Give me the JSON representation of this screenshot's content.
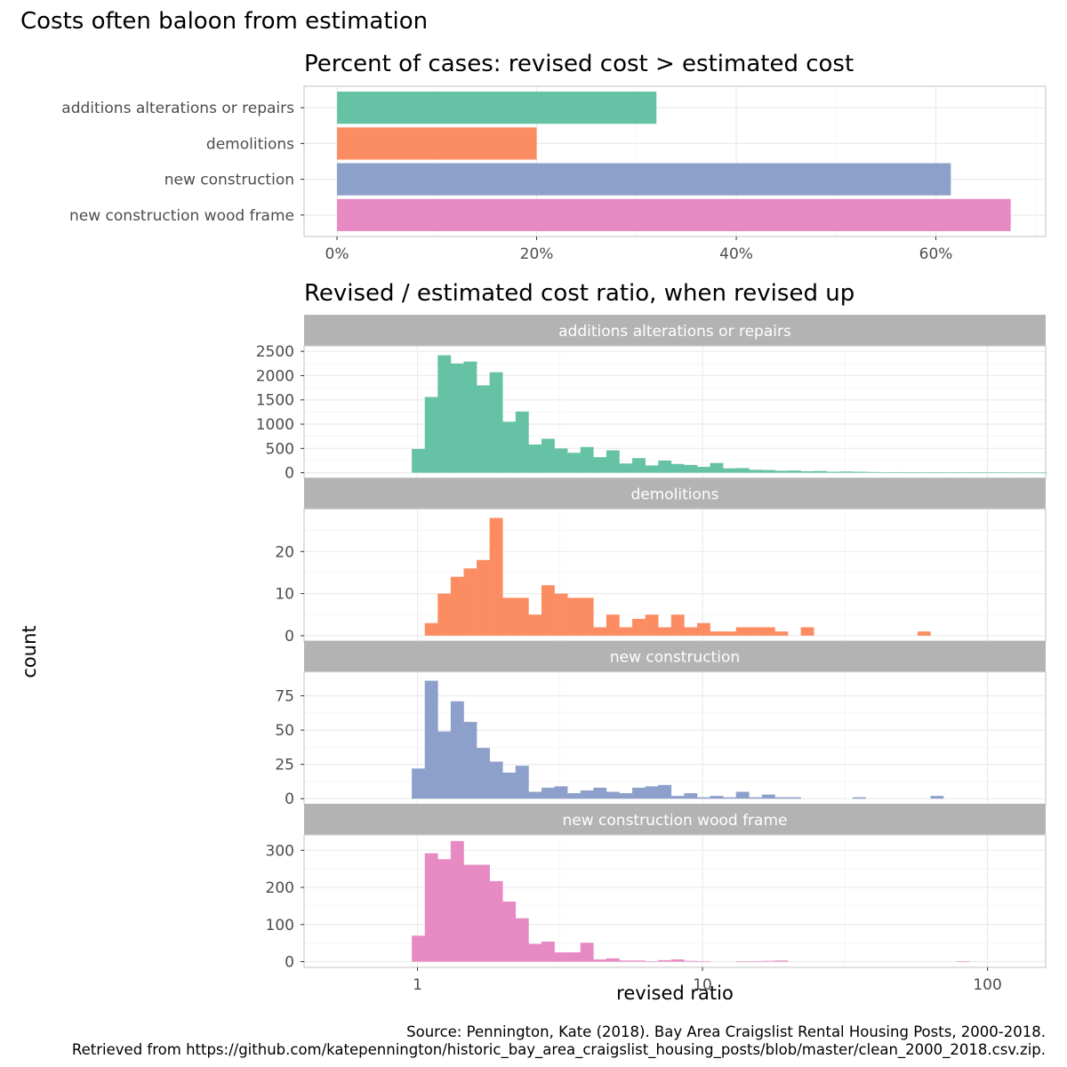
{
  "title": "Costs often baloon from estimation",
  "caption": {
    "line1": "Source: Pennington, Kate (2018). Bay Area Craigslist Rental Housing Posts, 2000-2018.",
    "line2": "Retrieved from https://github.com/katepennington/historic_bay_area_craigslist_housing_posts/blob/master/clean_2000_2018.csv.zip."
  },
  "colors": {
    "additions alterations or repairs": "#66c2a5",
    "demolitions": "#fc8d62",
    "new construction": "#8da0cb",
    "new construction wood frame": "#e78ac3",
    "strip": "#b3b3b3",
    "grid": "#ebebeb",
    "panel_border": "#cccccc"
  },
  "chart_data": [
    {
      "type": "bar",
      "orientation": "horizontal",
      "title": "Percent of cases: revised cost > estimated cost",
      "categories": [
        "additions alterations or repairs",
        "demolitions",
        "new construction",
        "new construction wood frame"
      ],
      "values": [
        0.32,
        0.2,
        0.615,
        0.675
      ],
      "xlim": [
        -0.033,
        0.71
      ],
      "xticks": [
        0,
        0.2,
        0.4,
        0.6
      ],
      "xtick_labels": [
        "0%",
        "20%",
        "40%",
        "60%"
      ],
      "grid": true
    },
    {
      "type": "histogram",
      "title": "Revised / estimated cost ratio, when revised up",
      "xlabel": "revised ratio",
      "ylabel": "count",
      "x_scale": "log10",
      "xlim": [
        0.4,
        160
      ],
      "xticks": [
        1,
        10,
        100
      ],
      "xtick_labels": [
        "1",
        "10",
        "100"
      ],
      "bins": {
        "start": 0.955,
        "log_width": 0.0455
      },
      "facets": [
        {
          "name": "additions alterations or repairs",
          "ylim": [
            0,
            2600
          ],
          "yticks": [
            0,
            500,
            1000,
            1500,
            2000,
            2500
          ],
          "counts": [
            490,
            1560,
            2420,
            2250,
            2290,
            1800,
            2070,
            1050,
            1260,
            580,
            700,
            500,
            410,
            530,
            320,
            460,
            190,
            300,
            150,
            250,
            180,
            160,
            120,
            200,
            90,
            95,
            60,
            55,
            40,
            45,
            30,
            35,
            20,
            25,
            20,
            15,
            10,
            12,
            8,
            6,
            5,
            6,
            4,
            10,
            3,
            3,
            2,
            2,
            1
          ]
        },
        {
          "name": "demolitions",
          "ylim": [
            0,
            30
          ],
          "yticks": [
            0,
            10,
            20
          ],
          "counts": [
            0,
            3,
            10,
            14,
            16,
            18,
            28,
            9,
            9,
            5,
            12,
            10,
            9,
            9,
            2,
            5,
            2,
            4,
            5,
            2,
            5,
            2,
            3,
            1,
            1,
            2,
            2,
            2,
            1,
            0,
            2,
            0,
            0,
            0,
            0,
            0,
            0,
            0,
            0,
            1
          ]
        },
        {
          "name": "new construction",
          "ylim": [
            0,
            92
          ],
          "yticks": [
            0,
            25,
            50,
            75
          ],
          "counts": [
            22,
            86,
            49,
            71,
            56,
            37,
            27,
            19,
            24,
            5,
            8,
            9,
            4,
            6,
            8,
            5,
            4,
            8,
            9,
            10,
            2,
            4,
            1,
            2,
            1,
            5,
            1,
            3,
            1,
            1,
            0,
            0,
            0,
            0,
            1,
            0,
            0,
            0,
            0,
            0,
            2
          ]
        },
        {
          "name": "new construction wood frame",
          "ylim": [
            0,
            340
          ],
          "yticks": [
            0,
            100,
            200,
            300
          ],
          "counts": [
            70,
            292,
            276,
            325,
            261,
            261,
            217,
            162,
            117,
            48,
            54,
            25,
            25,
            51,
            6,
            9,
            3,
            3,
            1,
            4,
            6,
            2,
            1,
            0,
            0,
            1,
            1,
            2,
            3,
            0,
            0,
            0,
            0,
            0,
            0,
            0,
            0,
            0,
            0,
            0,
            0,
            0,
            1
          ]
        }
      ]
    }
  ]
}
